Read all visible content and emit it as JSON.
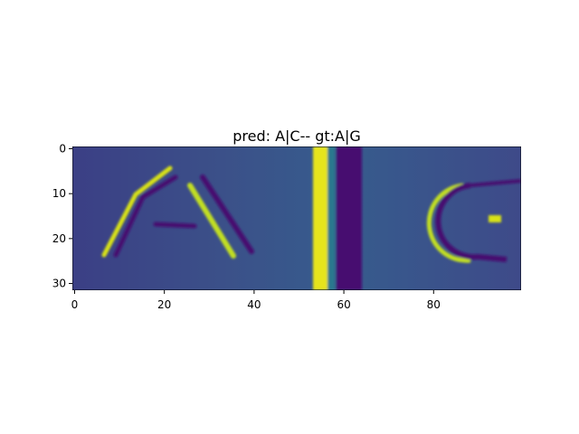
{
  "title": "pred: A|C-- gt:A|G",
  "image": {
    "description_hidden": true,
    "colormap": "viridis",
    "width_units": 100,
    "height_units": 32
  },
  "axes": {
    "x_ticks": [
      "0",
      "20",
      "40",
      "60",
      "80"
    ],
    "x_tick_values": [
      0,
      20,
      40,
      60,
      80
    ],
    "y_ticks": [
      "0",
      "10",
      "20",
      "30"
    ],
    "y_tick_values": [
      0,
      10,
      20,
      30
    ],
    "xlim": [
      -0.5,
      99.5
    ],
    "ylim": [
      31.5,
      -0.5
    ]
  },
  "colors": {
    "background": "#3e4a89",
    "background_dark": "#3b3f85",
    "bright": "#e6e41f",
    "bright_mid": "#8fd445",
    "dark": "#46106f",
    "teal": "#2a788e"
  }
}
